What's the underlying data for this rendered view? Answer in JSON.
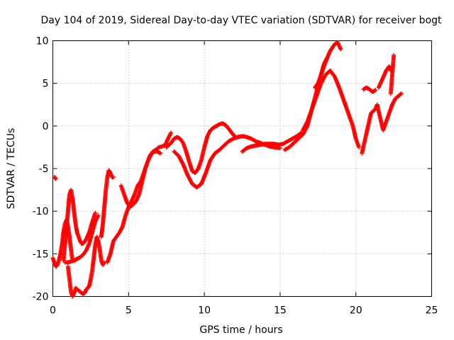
{
  "chart_data": {
    "type": "scatter",
    "title": "Day 104 of 2019, Sidereal Day-to-day VTEC variation (SDTVAR) for receiver bogt",
    "xlabel": "GPS time / hours",
    "ylabel": "SDTVAR / TECUs",
    "xlim": [
      0,
      25
    ],
    "ylim": [
      -20,
      10
    ],
    "xticks": [
      "0",
      "5",
      "10",
      "15",
      "20",
      "25"
    ],
    "yticks": [
      "-20",
      "-15",
      "-10",
      "-5",
      "0",
      "5",
      "10"
    ],
    "grid": true,
    "marker": "+",
    "color": "#ff0000",
    "series": [
      {
        "name": "arc1",
        "x": [
          0.0,
          0.1,
          0.2,
          0.3,
          0.4,
          0.5,
          0.6,
          0.7,
          0.8,
          0.9,
          1.0,
          1.1,
          1.2,
          1.3
        ],
        "y": [
          -15.5,
          -16.0,
          -16.5,
          -16.3,
          -15.8,
          -15.0,
          -14.0,
          -12.5,
          -11.5,
          -11.0,
          -11.8,
          -13.0,
          -14.5,
          -15.8
        ]
      },
      {
        "name": "arc2",
        "x": [
          0.1,
          0.15,
          0.2
        ],
        "y": [
          -6.0,
          -6.1,
          -6.2
        ]
      },
      {
        "name": "arc3",
        "x": [
          0.7,
          0.8,
          0.9,
          1.0,
          1.1,
          1.2,
          1.3,
          1.4,
          1.5,
          1.6,
          1.7,
          1.8,
          1.9,
          2.0,
          2.2,
          2.4,
          2.6,
          2.8
        ],
        "y": [
          -15.8,
          -14.0,
          -12.0,
          -10.0,
          -8.0,
          -7.5,
          -8.5,
          -10.0,
          -11.5,
          -12.5,
          -13.0,
          -13.5,
          -13.8,
          -13.8,
          -13.3,
          -12.5,
          -11.3,
          -10.2
        ]
      },
      {
        "name": "arc4",
        "x": [
          1.0,
          1.1,
          1.2,
          1.3,
          1.4,
          1.5
        ],
        "y": [
          -16.5,
          -18.0,
          -19.5,
          -20.0,
          -19.6,
          -19.2
        ]
      },
      {
        "name": "arc5",
        "x": [
          0.8,
          1.0,
          1.2,
          1.4,
          1.6,
          1.8,
          2.0,
          2.2,
          2.4,
          2.6,
          2.8,
          3.0
        ],
        "y": [
          -16.0,
          -16.0,
          -15.9,
          -15.8,
          -15.6,
          -15.4,
          -15.1,
          -14.6,
          -13.8,
          -12.5,
          -11.2,
          -10.5
        ]
      },
      {
        "name": "arc6",
        "x": [
          1.5,
          1.7,
          1.9,
          2.0,
          2.1,
          2.2,
          2.4,
          2.5,
          2.6,
          2.7,
          2.8,
          2.9,
          3.0,
          3.1,
          3.2,
          3.3,
          3.4
        ],
        "y": [
          -19.0,
          -19.3,
          -19.6,
          -19.7,
          -19.6,
          -19.2,
          -18.8,
          -18.0,
          -17.0,
          -15.5,
          -14.0,
          -13.0,
          -13.5,
          -14.5,
          -15.8,
          -16.3,
          -16.0
        ]
      },
      {
        "name": "arc7",
        "x": [
          3.2,
          3.3,
          3.4,
          3.5,
          3.6,
          3.7,
          3.8,
          3.9,
          4.0
        ],
        "y": [
          -13.0,
          -11.5,
          -9.5,
          -7.5,
          -6.0,
          -5.2,
          -5.5,
          -6.0,
          -6.0
        ]
      },
      {
        "name": "arc8",
        "x": [
          3.6,
          3.8,
          4.0,
          4.2,
          4.4,
          4.6,
          4.8,
          5.0,
          5.2,
          5.4,
          5.6,
          5.8,
          6.0,
          6.2,
          6.4,
          6.6,
          6.8,
          7.0,
          7.2,
          7.4,
          7.6,
          7.8
        ],
        "y": [
          -16.0,
          -15.0,
          -13.5,
          -13.0,
          -12.5,
          -11.8,
          -10.5,
          -9.5,
          -8.8,
          -8.0,
          -7.0,
          -6.5,
          -5.5,
          -4.5,
          -3.5,
          -3.0,
          -2.8,
          -2.5,
          -2.4,
          -2.3,
          -1.5,
          -0.8
        ]
      },
      {
        "name": "arc9",
        "x": [
          4.5,
          4.7,
          4.9,
          5.1,
          5.3,
          5.5,
          5.7,
          5.9,
          6.1,
          6.3,
          6.5,
          6.7,
          6.9,
          7.1
        ],
        "y": [
          -7.0,
          -8.0,
          -9.0,
          -9.5,
          -9.2,
          -8.8,
          -8.0,
          -6.5,
          -5.0,
          -4.0,
          -3.3,
          -3.0,
          -3.0,
          -3.2
        ]
      },
      {
        "name": "arc10",
        "x": [
          7.5,
          7.8,
          8.0,
          8.2,
          8.4,
          8.6,
          8.8,
          9.0,
          9.2,
          9.4,
          9.6,
          9.8,
          10.0,
          10.2,
          10.4,
          10.6,
          10.8,
          11.0,
          11.2,
          11.4,
          11.6,
          11.8,
          12.0
        ],
        "y": [
          -2.5,
          -2.0,
          -1.5,
          -1.3,
          -1.5,
          -2.0,
          -3.0,
          -4.2,
          -5.3,
          -5.5,
          -5.0,
          -4.0,
          -2.5,
          -1.2,
          -0.5,
          -0.2,
          0.0,
          0.2,
          0.3,
          0.1,
          -0.3,
          -0.8,
          -1.2
        ]
      },
      {
        "name": "arc11",
        "x": [
          8.0,
          8.3,
          8.6,
          8.9,
          9.2,
          9.5,
          9.8,
          10.1,
          10.4,
          10.7,
          11.0,
          11.3,
          11.6,
          11.9,
          12.2,
          12.5,
          12.8,
          13.1,
          13.4,
          13.7,
          14.0,
          14.3,
          14.6,
          15.0
        ],
        "y": [
          -3.0,
          -3.5,
          -4.5,
          -5.8,
          -6.8,
          -7.2,
          -6.8,
          -5.5,
          -4.0,
          -3.2,
          -2.8,
          -2.3,
          -1.8,
          -1.5,
          -1.3,
          -1.2,
          -1.3,
          -1.5,
          -1.8,
          -2.0,
          -2.2,
          -2.4,
          -2.5,
          -2.6
        ]
      },
      {
        "name": "arc12",
        "x": [
          12.5,
          12.8,
          13.1,
          13.4,
          13.7,
          14.0,
          14.3,
          14.6,
          14.9,
          15.2,
          15.5,
          15.8,
          16.1,
          16.4
        ],
        "y": [
          -3.0,
          -2.6,
          -2.4,
          -2.3,
          -2.2,
          -2.1,
          -2.1,
          -2.1,
          -2.2,
          -2.1,
          -1.8,
          -1.5,
          -1.2,
          -0.8
        ]
      },
      {
        "name": "arc13",
        "x": [
          15.3,
          15.6,
          15.9,
          16.2,
          16.5,
          16.8,
          17.1,
          17.4,
          17.7,
          18.0,
          18.3,
          18.6,
          18.8,
          19.0
        ],
        "y": [
          -2.8,
          -2.5,
          -2.0,
          -1.5,
          -1.0,
          0.0,
          2.0,
          4.0,
          6.0,
          7.5,
          8.8,
          9.6,
          9.8,
          9.0
        ]
      },
      {
        "name": "arc14",
        "x": [
          16.5,
          16.8,
          17.1,
          17.4,
          17.7,
          18.0,
          18.3,
          18.6,
          18.9,
          19.2,
          19.5,
          19.8,
          20.0,
          20.2
        ],
        "y": [
          -0.5,
          0.5,
          2.0,
          3.5,
          5.0,
          6.0,
          6.5,
          5.8,
          4.5,
          3.0,
          1.5,
          0.0,
          -1.5,
          -2.5
        ]
      },
      {
        "name": "arc15",
        "x": [
          17.3,
          17.5,
          17.7,
          17.9,
          18.1
        ],
        "y": [
          4.5,
          5.0,
          6.0,
          7.3,
          8.0
        ]
      },
      {
        "name": "arc16",
        "x": [
          20.5,
          20.7,
          20.9,
          21.1,
          21.3
        ],
        "y": [
          4.3,
          4.5,
          4.3,
          4.0,
          4.2
        ]
      },
      {
        "name": "arc17",
        "x": [
          20.4,
          21.0,
          21.3,
          21.4,
          21.8,
          22.0,
          22.2,
          22.4,
          22.6,
          22.8,
          23.0
        ],
        "y": [
          -3.2,
          1.5,
          2.0,
          2.5,
          -0.5,
          0.5,
          1.5,
          2.5,
          3.2,
          3.5,
          3.8
        ]
      },
      {
        "name": "arc18",
        "x": [
          21.5,
          21.7,
          22.0,
          22.2,
          22.3
        ],
        "y": [
          4.5,
          5.3,
          6.5,
          7.0,
          6.5
        ]
      },
      {
        "name": "arc19",
        "x": [
          22.5,
          22.3
        ],
        "y": [
          8.3,
          3.8
        ]
      }
    ]
  }
}
